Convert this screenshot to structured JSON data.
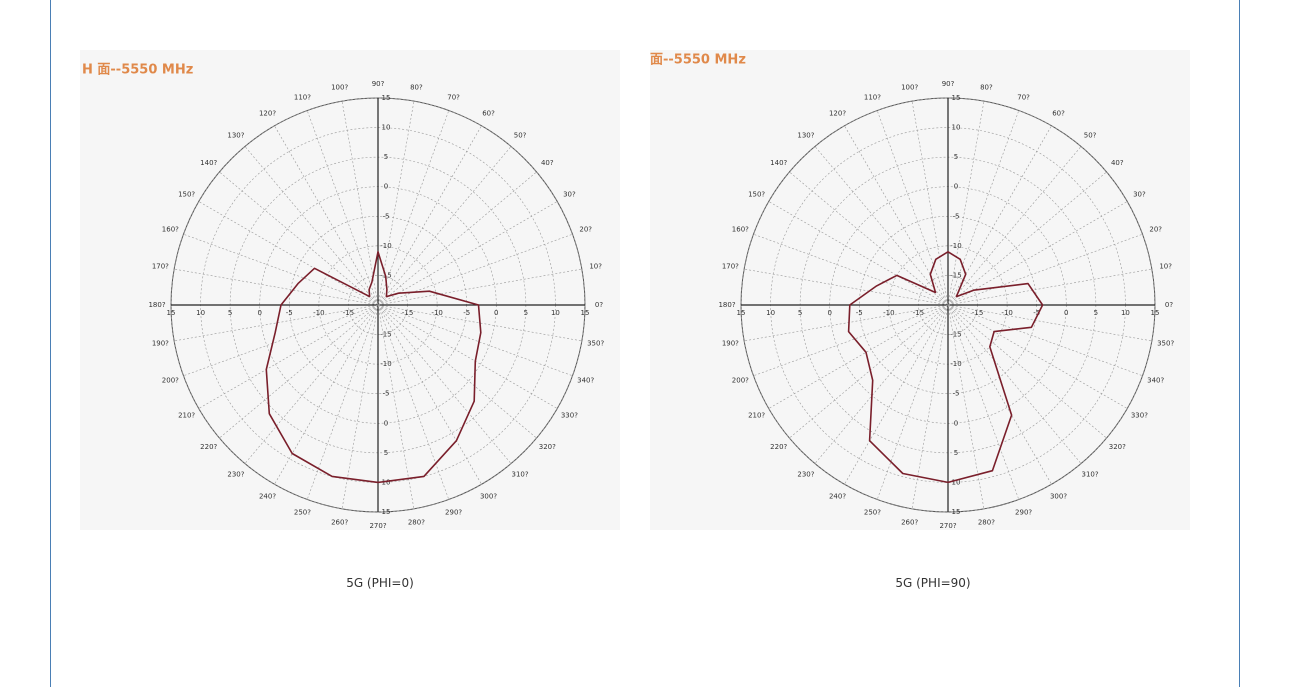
{
  "chart_data": [
    {
      "type": "polar",
      "title": "H 面--5550 MHz",
      "rlim": [
        -20,
        15
      ],
      "rticks": [
        15,
        10,
        5,
        0,
        -5,
        -10,
        -15
      ],
      "thetaticks": [
        {
          "value": 0,
          "label": "0?"
        },
        {
          "value": 10,
          "label": "10?"
        },
        {
          "value": 20,
          "label": "20?"
        },
        {
          "value": 30,
          "label": "30?"
        },
        {
          "value": 40,
          "label": "40?"
        },
        {
          "value": 50,
          "label": "50?"
        },
        {
          "value": 60,
          "label": "60?"
        },
        {
          "value": 70,
          "label": "70?"
        },
        {
          "value": 80,
          "label": "80?"
        },
        {
          "value": 90,
          "label": "90?"
        },
        {
          "value": 100,
          "label": "100?"
        },
        {
          "value": 110,
          "label": "110?"
        },
        {
          "value": 120,
          "label": "120?"
        },
        {
          "value": 130,
          "label": "130?"
        },
        {
          "value": 140,
          "label": "140?"
        },
        {
          "value": 150,
          "label": "150?"
        },
        {
          "value": 160,
          "label": "160?"
        },
        {
          "value": 170,
          "label": "170?"
        },
        {
          "value": 180,
          "label": "180?"
        },
        {
          "value": 190,
          "label": "190?"
        },
        {
          "value": 200,
          "label": "200?"
        },
        {
          "value": 210,
          "label": "210?"
        },
        {
          "value": 220,
          "label": "220?"
        },
        {
          "value": 230,
          "label": "230?"
        },
        {
          "value": 240,
          "label": "240?"
        },
        {
          "value": 250,
          "label": "250?"
        },
        {
          "value": 260,
          "label": "260?"
        },
        {
          "value": 270,
          "label": "270?"
        },
        {
          "value": 280,
          "label": "280?"
        },
        {
          "value": 290,
          "label": "290?"
        },
        {
          "value": 300,
          "label": "300?"
        },
        {
          "value": 310,
          "label": "310?"
        },
        {
          "value": 320,
          "label": "320?"
        },
        {
          "value": 330,
          "label": "330?"
        },
        {
          "value": 340,
          "label": "340?"
        },
        {
          "value": 350,
          "label": "350?"
        }
      ],
      "grid": true,
      "series": [
        {
          "color": "#7a1f2b",
          "theta": [
            0,
            15,
            30,
            45,
            60,
            75,
            90,
            105,
            120,
            135,
            150,
            165,
            180,
            195,
            210,
            225,
            240,
            255,
            270,
            285,
            300,
            315,
            330,
            345
          ],
          "values": [
            -3,
            -11,
            -16,
            -18,
            -17,
            -15,
            -11,
            -16,
            -17,
            -18,
            -7.6,
            -6,
            -3.6,
            -2,
            1.8,
            6,
            9,
            10,
            10,
            10,
            6.5,
            3,
            -1,
            -2
          ]
        }
      ]
    },
    {
      "type": "polar",
      "title": "面--5550 MHz",
      "rlim": [
        -20,
        15
      ],
      "rticks": [
        15,
        10,
        5,
        0,
        -5,
        -10,
        -15
      ],
      "thetaticks": [
        {
          "value": 0,
          "label": "0?"
        },
        {
          "value": 10,
          "label": "10?"
        },
        {
          "value": 20,
          "label": "20?"
        },
        {
          "value": 30,
          "label": "30?"
        },
        {
          "value": 40,
          "label": "40?"
        },
        {
          "value": 50,
          "label": "50?"
        },
        {
          "value": 60,
          "label": "60?"
        },
        {
          "value": 70,
          "label": "70?"
        },
        {
          "value": 80,
          "label": "80?"
        },
        {
          "value": 90,
          "label": "90?"
        },
        {
          "value": 100,
          "label": "100?"
        },
        {
          "value": 110,
          "label": "110?"
        },
        {
          "value": 120,
          "label": "120?"
        },
        {
          "value": 130,
          "label": "130?"
        },
        {
          "value": 140,
          "label": "140?"
        },
        {
          "value": 150,
          "label": "150?"
        },
        {
          "value": 160,
          "label": "160?"
        },
        {
          "value": 170,
          "label": "170?"
        },
        {
          "value": 180,
          "label": "180?"
        },
        {
          "value": 190,
          "label": "190?"
        },
        {
          "value": 200,
          "label": "200?"
        },
        {
          "value": 210,
          "label": "210?"
        },
        {
          "value": 220,
          "label": "220?"
        },
        {
          "value": 230,
          "label": "230?"
        },
        {
          "value": 240,
          "label": "240?"
        },
        {
          "value": 250,
          "label": "250?"
        },
        {
          "value": 260,
          "label": "260?"
        },
        {
          "value": 270,
          "label": "270?"
        },
        {
          "value": 280,
          "label": "280?"
        },
        {
          "value": 290,
          "label": "290?"
        },
        {
          "value": 300,
          "label": "300?"
        },
        {
          "value": 310,
          "label": "310?"
        },
        {
          "value": 320,
          "label": "320?"
        },
        {
          "value": 330,
          "label": "330?"
        },
        {
          "value": 340,
          "label": "340?"
        },
        {
          "value": 350,
          "label": "350?"
        }
      ],
      "grid": true,
      "series": [
        {
          "color": "#7a1f2b",
          "theta": [
            0,
            15,
            30,
            45,
            60,
            75,
            90,
            105,
            120,
            135,
            150,
            165,
            180,
            195,
            210,
            225,
            240,
            255,
            270,
            285,
            300,
            315,
            330,
            345
          ],
          "values": [
            -4,
            -6,
            -15,
            -18,
            -14,
            -12,
            -11,
            -12,
            -14,
            -17,
            -10,
            -7.5,
            -3.4,
            -2.6,
            -4,
            -2,
            6.5,
            9.5,
            10,
            9,
            1.5,
            -10,
            -11,
            -5.4
          ]
        }
      ]
    }
  ],
  "captions": [
    "5G (PHI=0)",
    "5G (PHI=90)"
  ]
}
